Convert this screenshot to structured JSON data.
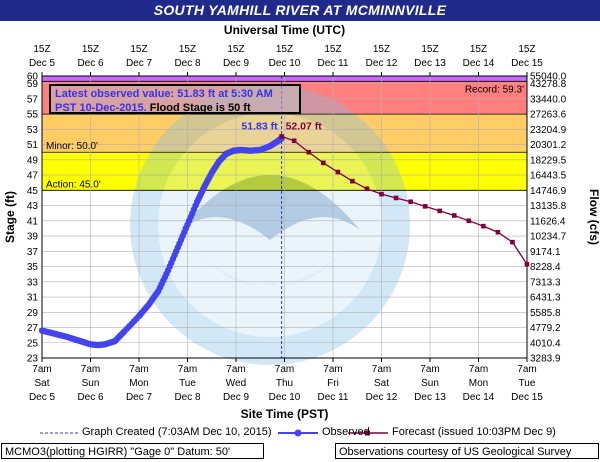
{
  "title": "SOUTH YAMHILL RIVER AT MCMINNVILLE",
  "chart_data": {
    "type": "line",
    "top_axis_label": "Universal Time (UTC)",
    "xlabel": "Site Time (PST)",
    "ylabel": "Stage (ft)",
    "y2label": "Flow (cfs)",
    "ylim": [
      23,
      60
    ],
    "xlim": [
      "2015-12-05 07:00",
      "2015-12-15 07:00"
    ],
    "y_ticks": [
      "23",
      "25",
      "27",
      "29",
      "31",
      "33",
      "35",
      "37",
      "39",
      "41",
      "43",
      "45",
      "47",
      "49",
      "51",
      "53",
      "55",
      "57",
      "59",
      "60"
    ],
    "y2_ticks": [
      {
        "stage": 60,
        "label": "55040.0"
      },
      {
        "stage": 59,
        "label": "43278.8"
      },
      {
        "stage": 57,
        "label": "33440.0"
      },
      {
        "stage": 55,
        "label": "27263.6"
      },
      {
        "stage": 53,
        "label": "23204.9"
      },
      {
        "stage": 51,
        "label": "20301.2"
      },
      {
        "stage": 49,
        "label": "18229.5"
      },
      {
        "stage": 47,
        "label": "16443.5"
      },
      {
        "stage": 45,
        "label": "14746.9"
      },
      {
        "stage": 43,
        "label": "13135.8"
      },
      {
        "stage": 41,
        "label": "11626.4"
      },
      {
        "stage": 39,
        "label": "10234.7"
      },
      {
        "stage": 37,
        "label": "9174.1"
      },
      {
        "stage": 35,
        "label": "8228.4"
      },
      {
        "stage": 33,
        "label": "7313.3"
      },
      {
        "stage": 31,
        "label": "6431.3"
      },
      {
        "stage": 29,
        "label": "5585.8"
      },
      {
        "stage": 27,
        "label": "4779.2"
      },
      {
        "stage": 25,
        "label": "4010.4"
      },
      {
        "stage": 23,
        "label": "3283.9"
      }
    ],
    "bottom_ticks": [
      {
        "time": "7am",
        "day": "Sat",
        "date": "Dec 5"
      },
      {
        "time": "7am",
        "day": "Sun",
        "date": "Dec 6"
      },
      {
        "time": "7am",
        "day": "Mon",
        "date": "Dec 7"
      },
      {
        "time": "7am",
        "day": "Tue",
        "date": "Dec 8"
      },
      {
        "time": "7am",
        "day": "Wed",
        "date": "Dec 9"
      },
      {
        "time": "7am",
        "day": "Thu",
        "date": "Dec 10"
      },
      {
        "time": "7am",
        "day": "Fri",
        "date": "Dec 11"
      },
      {
        "time": "7am",
        "day": "Sat",
        "date": "Dec 12"
      },
      {
        "time": "7am",
        "day": "Sun",
        "date": "Dec 13"
      },
      {
        "time": "7am",
        "day": "Mon",
        "date": "Dec 14"
      },
      {
        "time": "7am",
        "day": "Tue",
        "date": "Dec 15"
      }
    ],
    "top_ticks": [
      {
        "time": "15Z",
        "date": "Dec 5"
      },
      {
        "time": "15Z",
        "date": "Dec 6"
      },
      {
        "time": "15Z",
        "date": "Dec 7"
      },
      {
        "time": "15Z",
        "date": "Dec 8"
      },
      {
        "time": "15Z",
        "date": "Dec 9"
      },
      {
        "time": "15Z",
        "date": "Dec 10"
      },
      {
        "time": "15Z",
        "date": "Dec 11"
      },
      {
        "time": "15Z",
        "date": "Dec 12"
      },
      {
        "time": "15Z",
        "date": "Dec 13"
      },
      {
        "time": "15Z",
        "date": "Dec 14"
      },
      {
        "time": "15Z",
        "date": "Dec 15"
      }
    ],
    "flood_bands": [
      {
        "from": 45,
        "to": 50,
        "color": "#ffff00"
      },
      {
        "from": 50,
        "to": 55,
        "color": "#ffcc66"
      },
      {
        "from": 55,
        "to": 59.3,
        "color": "#ff7f7f"
      },
      {
        "from": 59.3,
        "to": 60,
        "color": "#cc66ff"
      }
    ],
    "labels": {
      "record": "Record:  59.3'",
      "minor": "Minor: 50.0'",
      "action": "Action: 45.0'",
      "observed_peak": "51.83 ft",
      "forecast_peak": "52.07 ft",
      "info_line1": "Latest observed value:  51.83 ft at 5:30 AM",
      "info_line2_blue": "PST 10-Dec-2015.",
      "info_line2_black": "  Flood Stage is 50 ft"
    },
    "graph_created_day": 4.94,
    "series": [
      {
        "name": "Observed",
        "color": "#4444ee",
        "x_days": [
          0.0,
          0.25,
          0.5,
          0.75,
          1.0,
          1.15,
          1.3,
          1.5,
          1.7,
          2.0,
          2.2,
          2.4,
          2.6,
          2.8,
          3.0,
          3.2,
          3.35,
          3.5,
          3.65,
          3.8,
          3.95,
          4.1,
          4.3,
          4.5,
          4.7,
          4.85,
          4.94
        ],
        "values": [
          26.6,
          26.2,
          25.8,
          25.3,
          24.8,
          24.7,
          24.8,
          25.2,
          26.5,
          28.5,
          30.0,
          31.8,
          34.5,
          37.5,
          40.5,
          43.5,
          45.5,
          47.3,
          48.8,
          49.8,
          50.2,
          50.3,
          50.2,
          50.3,
          50.8,
          51.4,
          51.83
        ]
      },
      {
        "name": "Forecast (issued 10:03PM Dec 9)",
        "color": "#800040",
        "x_days": [
          4.94,
          5.2,
          5.5,
          5.8,
          6.1,
          6.4,
          6.7,
          7.0,
          7.3,
          7.6,
          7.9,
          8.2,
          8.5,
          8.8,
          9.1,
          9.4,
          9.7,
          10.0
        ],
        "values": [
          52.07,
          51.5,
          50.0,
          48.6,
          47.4,
          46.2,
          45.2,
          44.5,
          44.0,
          43.5,
          42.9,
          42.3,
          41.7,
          41.0,
          40.3,
          39.5,
          38.2,
          35.3
        ]
      }
    ]
  },
  "legend": {
    "graph_created": "Graph Created (7:03AM Dec 10, 2015)",
    "observed": "Observed",
    "forecast": "Forecast (issued 10:03PM Dec 9)"
  },
  "footer": {
    "left": "MCMO3(plotting HGIRR) \"Gage 0\" Datum: 50'",
    "right": "Observations courtesy of US Geological Survey"
  }
}
